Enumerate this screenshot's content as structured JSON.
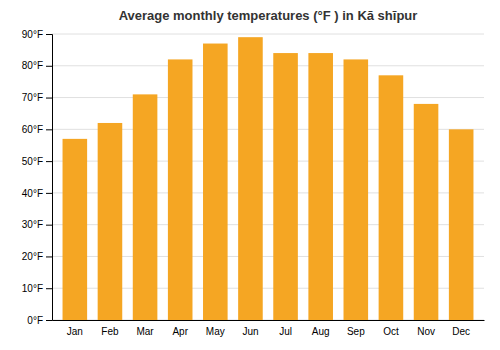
{
  "chart_data": {
    "type": "bar",
    "title": "Average monthly temperatures (°F ) in Kā shīpur",
    "categories": [
      "Jan",
      "Feb",
      "Mar",
      "Apr",
      "May",
      "Jun",
      "Jul",
      "Aug",
      "Sep",
      "Oct",
      "Nov",
      "Dec"
    ],
    "values": [
      57,
      62,
      71,
      82,
      87,
      89,
      84,
      84,
      82,
      77,
      68,
      60
    ],
    "color": "#F5A623",
    "ylim": [
      0,
      90
    ],
    "yticks": [
      {
        "value": 0,
        "label": "0°F"
      },
      {
        "value": 10,
        "label": "10°F"
      },
      {
        "value": 20,
        "label": "20°F"
      },
      {
        "value": 30,
        "label": "30°F"
      },
      {
        "value": 40,
        "label": "40°F"
      },
      {
        "value": 50,
        "label": "50°F"
      },
      {
        "value": 60,
        "label": "60°F"
      },
      {
        "value": 70,
        "label": "70°F"
      },
      {
        "value": 80,
        "label": "80°F"
      },
      {
        "value": 90,
        "label": "90°F"
      }
    ],
    "grid": true
  }
}
